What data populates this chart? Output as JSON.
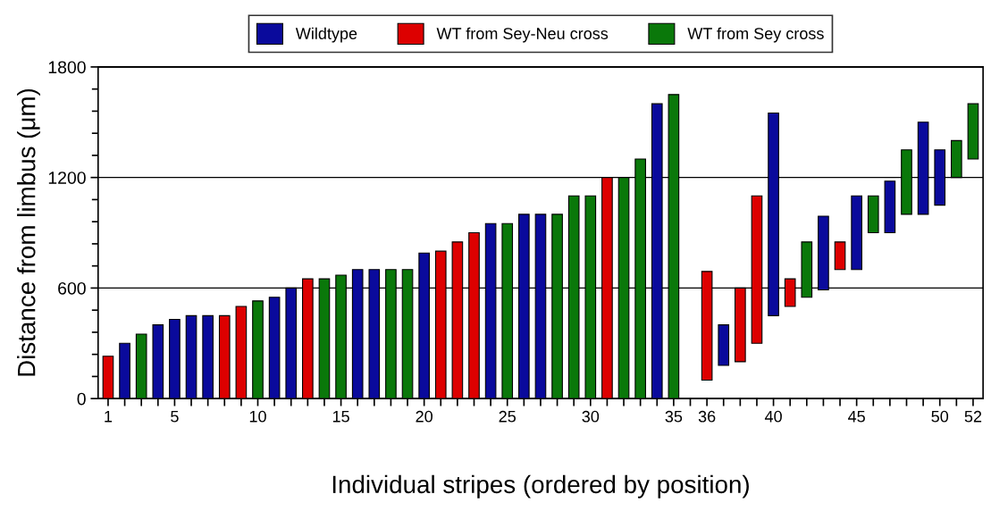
{
  "chart_data": {
    "type": "bar",
    "xlabel": "Individual stripes (ordered by position)",
    "ylabel": "Distance from limbus (μm)",
    "categories": [
      "1",
      null,
      null,
      null,
      "5",
      null,
      null,
      null,
      null,
      "10",
      null,
      null,
      null,
      null,
      "15",
      null,
      null,
      null,
      null,
      "20",
      null,
      null,
      null,
      null,
      "25",
      null,
      null,
      null,
      null,
      "30",
      null,
      null,
      null,
      null,
      "35",
      null,
      "36",
      null,
      null,
      null,
      "40",
      null,
      null,
      null,
      null,
      "45",
      null,
      null,
      null,
      null,
      "50",
      null,
      "52"
    ],
    "series": [
      {
        "name": "Wildtype",
        "color": "#0a0a9c",
        "values": [
          null,
          300,
          null,
          400,
          430,
          450,
          450,
          null,
          null,
          null,
          550,
          600,
          null,
          null,
          null,
          700,
          700,
          null,
          null,
          790,
          null,
          null,
          null,
          950,
          null,
          1000,
          1000,
          null,
          null,
          null,
          null,
          null,
          null,
          1600,
          null,
          null,
          null,
          220,
          null,
          null,
          1100,
          null,
          null,
          400,
          null,
          400,
          null,
          280,
          null,
          500,
          300,
          null,
          null
        ],
        "base": [
          null,
          0,
          null,
          0,
          0,
          0,
          0,
          null,
          null,
          null,
          0,
          0,
          null,
          null,
          null,
          0,
          0,
          null,
          null,
          0,
          null,
          null,
          null,
          0,
          null,
          0,
          0,
          null,
          null,
          null,
          null,
          null,
          null,
          0,
          null,
          null,
          null,
          180,
          null,
          null,
          450,
          null,
          null,
          590,
          null,
          700,
          null,
          900,
          null,
          1000,
          1050,
          null,
          null
        ]
      },
      {
        "name": "WT from Sey-Neu cross",
        "color": "#dd0000",
        "values": [
          230,
          null,
          null,
          null,
          null,
          null,
          null,
          450,
          500,
          null,
          null,
          null,
          650,
          null,
          null,
          null,
          null,
          null,
          null,
          null,
          800,
          850,
          900,
          null,
          null,
          null,
          null,
          null,
          null,
          null,
          1200,
          null,
          null,
          null,
          null,
          null,
          590,
          null,
          400,
          800,
          null,
          150,
          null,
          null,
          150,
          null,
          null,
          null,
          null,
          null,
          null,
          null,
          null
        ],
        "base": [
          0,
          null,
          null,
          null,
          null,
          null,
          null,
          0,
          0,
          null,
          null,
          null,
          0,
          null,
          null,
          null,
          null,
          null,
          null,
          null,
          0,
          0,
          0,
          null,
          null,
          null,
          null,
          null,
          null,
          null,
          0,
          null,
          null,
          null,
          null,
          null,
          100,
          null,
          200,
          300,
          null,
          500,
          null,
          null,
          700,
          null,
          null,
          null,
          null,
          null,
          null,
          null,
          null
        ]
      },
      {
        "name": "WT from Sey cross",
        "color": "#0a780a",
        "values": [
          null,
          null,
          350,
          null,
          null,
          null,
          null,
          null,
          null,
          530,
          null,
          null,
          null,
          650,
          670,
          null,
          null,
          700,
          700,
          null,
          null,
          null,
          null,
          null,
          950,
          null,
          null,
          1000,
          1100,
          1100,
          null,
          1200,
          1300,
          null,
          1650,
          null,
          null,
          null,
          null,
          null,
          null,
          null,
          300,
          null,
          null,
          null,
          200,
          null,
          350,
          null,
          null,
          200,
          300
        ],
        "base": [
          null,
          null,
          0,
          null,
          null,
          null,
          null,
          null,
          null,
          0,
          null,
          null,
          null,
          0,
          0,
          null,
          null,
          0,
          0,
          null,
          null,
          null,
          null,
          null,
          0,
          null,
          null,
          0,
          0,
          0,
          null,
          0,
          0,
          null,
          0,
          null,
          null,
          null,
          null,
          null,
          null,
          null,
          550,
          null,
          null,
          null,
          900,
          null,
          1000,
          null,
          null,
          1200,
          1300
        ]
      }
    ],
    "ylim": [
      0,
      1800
    ],
    "yticks": [
      0,
      600,
      1200,
      1800
    ],
    "grid": "y",
    "legend": "top"
  }
}
